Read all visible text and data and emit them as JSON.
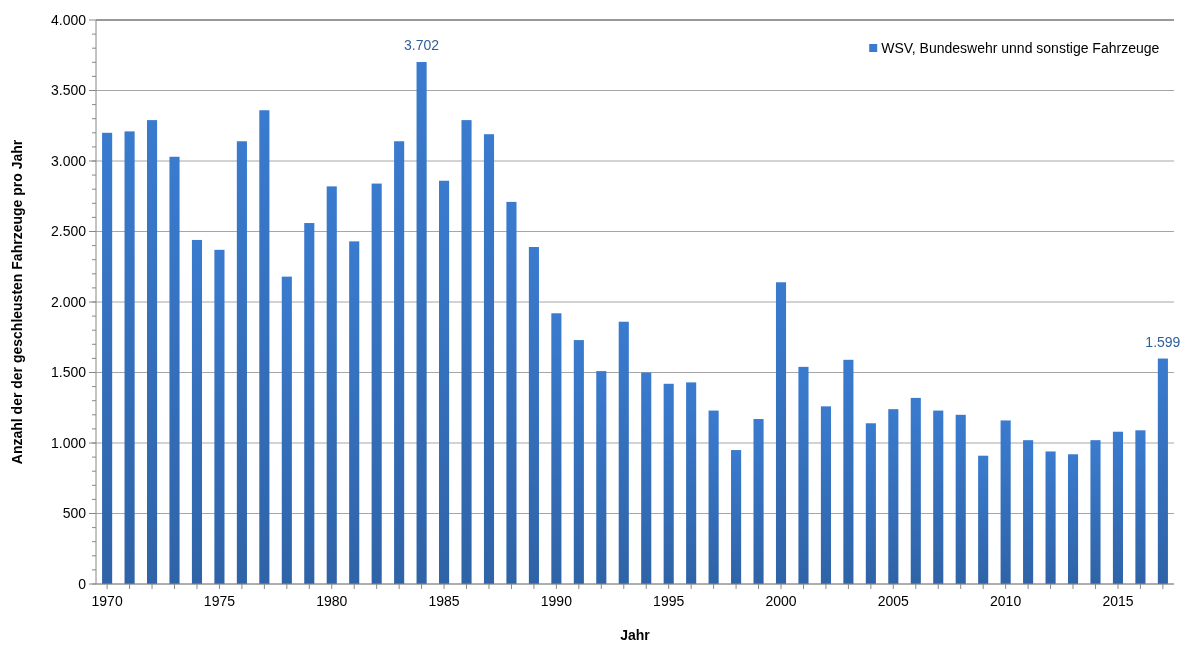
{
  "chart_data": {
    "type": "bar",
    "xlabel": "Jahr",
    "ylabel": "Anzahl der der geschleusten Fahrzeuge pro Jahr",
    "categories": [
      "1970",
      null,
      null,
      null,
      null,
      "1975",
      null,
      null,
      null,
      null,
      "1980",
      null,
      null,
      null,
      null,
      "1985",
      null,
      null,
      null,
      null,
      "1990",
      null,
      null,
      null,
      null,
      "1995",
      null,
      null,
      null,
      null,
      "2000",
      null,
      null,
      null,
      null,
      "2005",
      null,
      null,
      null,
      null,
      "2010",
      null,
      null,
      null,
      null,
      "2015",
      null,
      null
    ],
    "series": [
      {
        "name": "WSV, Bundeswehr unnd sonstige Fahrzeuge",
        "color": "#3a7bcf",
        "values": [
          3200,
          3210,
          3290,
          3030,
          2440,
          2370,
          3140,
          3360,
          2180,
          2560,
          2820,
          2430,
          2840,
          3140,
          3702,
          2860,
          3290,
          3190,
          2710,
          2390,
          1920,
          1730,
          1510,
          1860,
          1500,
          1420,
          1430,
          1230,
          950,
          1170,
          2140,
          1540,
          1260,
          1590,
          1140,
          1240,
          1320,
          1230,
          1200,
          910,
          1160,
          1020,
          940,
          920,
          1020,
          1080,
          1090,
          1599
        ],
        "value_labels": [
          null,
          null,
          null,
          null,
          null,
          null,
          null,
          null,
          null,
          null,
          null,
          null,
          null,
          null,
          "3.702",
          null,
          null,
          null,
          null,
          null,
          null,
          null,
          null,
          null,
          null,
          null,
          null,
          null,
          null,
          null,
          null,
          null,
          null,
          null,
          null,
          null,
          null,
          null,
          null,
          null,
          null,
          null,
          null,
          null,
          null,
          null,
          null,
          "1.599"
        ]
      }
    ],
    "ylim": [
      0,
      4000
    ],
    "yticks": [
      {
        "value": 0,
        "label": "0"
      },
      {
        "value": 500,
        "label": "500"
      },
      {
        "value": 1000,
        "label": "1.000"
      },
      {
        "value": 1500,
        "label": "1.500"
      },
      {
        "value": 2000,
        "label": "2.000"
      },
      {
        "value": 2500,
        "label": "2.500"
      },
      {
        "value": 3000,
        "label": "3.000"
      },
      {
        "value": 3500,
        "label": "3.500"
      },
      {
        "value": 4000,
        "label": "4.000"
      }
    ],
    "grid": "y",
    "legend": "top right"
  }
}
